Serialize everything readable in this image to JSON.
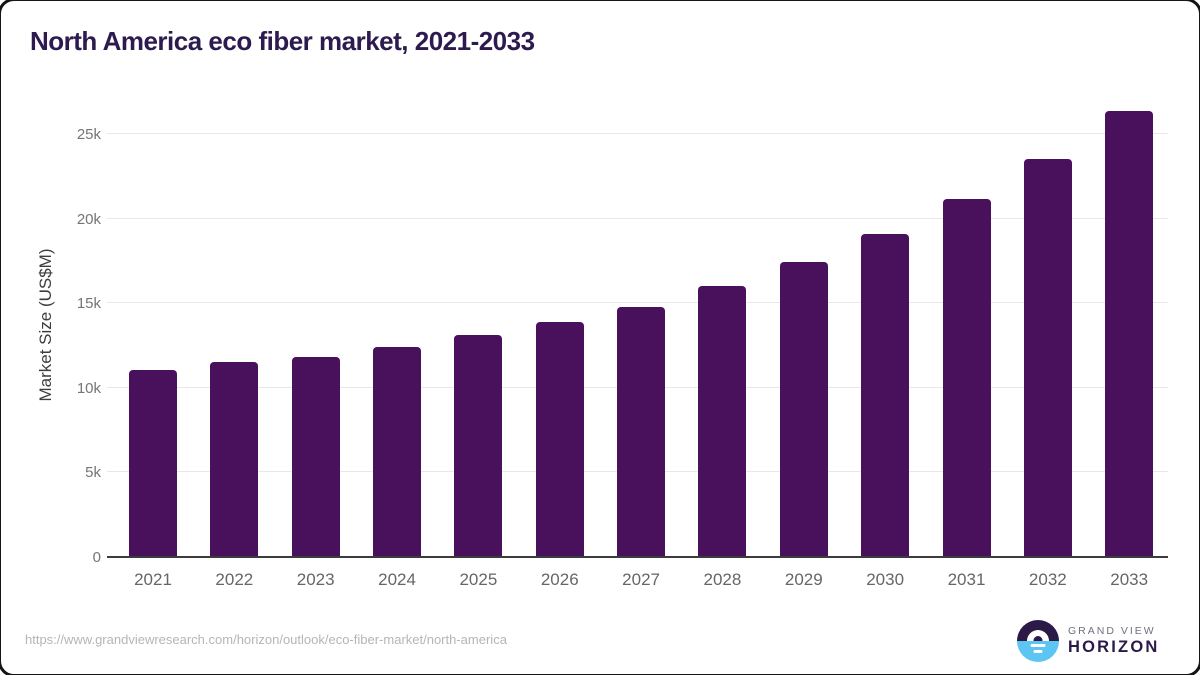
{
  "title": "North America eco fiber market, 2021-2033",
  "chart_data": {
    "type": "bar",
    "title": "North America eco fiber market, 2021-2033",
    "xlabel": "",
    "ylabel": "Market Size (US$M)",
    "categories": [
      "2021",
      "2022",
      "2023",
      "2024",
      "2025",
      "2026",
      "2027",
      "2028",
      "2029",
      "2030",
      "2031",
      "2032",
      "2033"
    ],
    "values": [
      11000,
      11450,
      11800,
      12350,
      13050,
      13850,
      14750,
      16000,
      17400,
      19050,
      21100,
      23500,
      26350
    ],
    "ylim": [
      0,
      27100
    ],
    "yticks": [
      {
        "value": 0,
        "label": "0"
      },
      {
        "value": 5000,
        "label": "5k"
      },
      {
        "value": 10000,
        "label": "10k"
      },
      {
        "value": 15000,
        "label": "15k"
      },
      {
        "value": 20000,
        "label": "20k"
      },
      {
        "value": 25000,
        "label": "25k"
      }
    ],
    "grid": "horizontal",
    "legend": "none",
    "bar_color": "#49105c",
    "gridline_color": "#e8e8e8",
    "axis_line_color": "#3b3b3b"
  },
  "footer": {
    "source_url": "https://www.grandviewresearch.com/horizon/outlook/eco-fiber-market/north-america"
  },
  "branding": {
    "name_line1": "GRAND VIEW",
    "name_line2": "HORIZON",
    "logo_top_color": "#2b1a47",
    "logo_bottom_color": "#5cc5f1"
  }
}
